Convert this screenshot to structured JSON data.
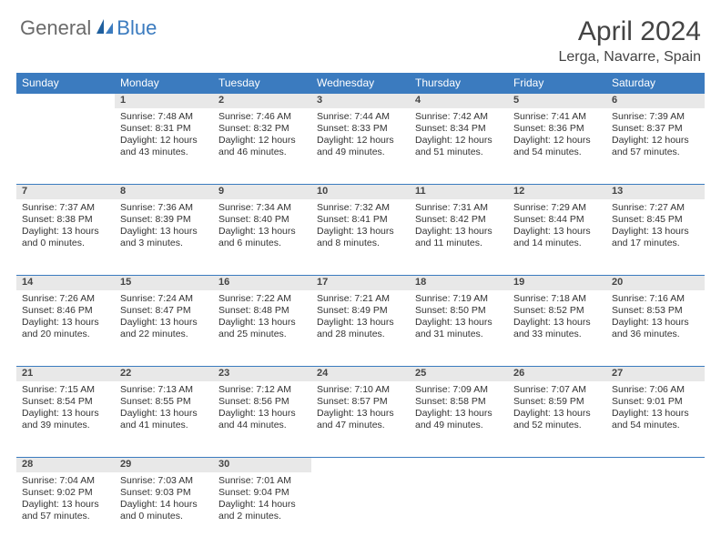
{
  "brand": {
    "part1": "General",
    "part2": "Blue"
  },
  "title": "April 2024",
  "location": "Lerga, Navarre, Spain",
  "colors": {
    "header_bg": "#3b7bbf",
    "header_text": "#ffffff",
    "daynum_bg": "#e8e8e8",
    "logo_gray": "#6a6a6a",
    "logo_blue": "#3b7bbf"
  },
  "typography": {
    "title_fontsize": 30,
    "location_fontsize": 16,
    "dayheader_fontsize": 12,
    "cell_fontsize": 10.5
  },
  "day_headers": [
    "Sunday",
    "Monday",
    "Tuesday",
    "Wednesday",
    "Thursday",
    "Friday",
    "Saturday"
  ],
  "weeks": [
    {
      "nums": [
        "",
        "1",
        "2",
        "3",
        "4",
        "5",
        "6"
      ],
      "cells": [
        {
          "empty": true
        },
        {
          "sunrise": "Sunrise: 7:48 AM",
          "sunset": "Sunset: 8:31 PM",
          "d1": "Daylight: 12 hours",
          "d2": "and 43 minutes."
        },
        {
          "sunrise": "Sunrise: 7:46 AM",
          "sunset": "Sunset: 8:32 PM",
          "d1": "Daylight: 12 hours",
          "d2": "and 46 minutes."
        },
        {
          "sunrise": "Sunrise: 7:44 AM",
          "sunset": "Sunset: 8:33 PM",
          "d1": "Daylight: 12 hours",
          "d2": "and 49 minutes."
        },
        {
          "sunrise": "Sunrise: 7:42 AM",
          "sunset": "Sunset: 8:34 PM",
          "d1": "Daylight: 12 hours",
          "d2": "and 51 minutes."
        },
        {
          "sunrise": "Sunrise: 7:41 AM",
          "sunset": "Sunset: 8:36 PM",
          "d1": "Daylight: 12 hours",
          "d2": "and 54 minutes."
        },
        {
          "sunrise": "Sunrise: 7:39 AM",
          "sunset": "Sunset: 8:37 PM",
          "d1": "Daylight: 12 hours",
          "d2": "and 57 minutes."
        }
      ]
    },
    {
      "nums": [
        "7",
        "8",
        "9",
        "10",
        "11",
        "12",
        "13"
      ],
      "cells": [
        {
          "sunrise": "Sunrise: 7:37 AM",
          "sunset": "Sunset: 8:38 PM",
          "d1": "Daylight: 13 hours",
          "d2": "and 0 minutes."
        },
        {
          "sunrise": "Sunrise: 7:36 AM",
          "sunset": "Sunset: 8:39 PM",
          "d1": "Daylight: 13 hours",
          "d2": "and 3 minutes."
        },
        {
          "sunrise": "Sunrise: 7:34 AM",
          "sunset": "Sunset: 8:40 PM",
          "d1": "Daylight: 13 hours",
          "d2": "and 6 minutes."
        },
        {
          "sunrise": "Sunrise: 7:32 AM",
          "sunset": "Sunset: 8:41 PM",
          "d1": "Daylight: 13 hours",
          "d2": "and 8 minutes."
        },
        {
          "sunrise": "Sunrise: 7:31 AM",
          "sunset": "Sunset: 8:42 PM",
          "d1": "Daylight: 13 hours",
          "d2": "and 11 minutes."
        },
        {
          "sunrise": "Sunrise: 7:29 AM",
          "sunset": "Sunset: 8:44 PM",
          "d1": "Daylight: 13 hours",
          "d2": "and 14 minutes."
        },
        {
          "sunrise": "Sunrise: 7:27 AM",
          "sunset": "Sunset: 8:45 PM",
          "d1": "Daylight: 13 hours",
          "d2": "and 17 minutes."
        }
      ]
    },
    {
      "nums": [
        "14",
        "15",
        "16",
        "17",
        "18",
        "19",
        "20"
      ],
      "cells": [
        {
          "sunrise": "Sunrise: 7:26 AM",
          "sunset": "Sunset: 8:46 PM",
          "d1": "Daylight: 13 hours",
          "d2": "and 20 minutes."
        },
        {
          "sunrise": "Sunrise: 7:24 AM",
          "sunset": "Sunset: 8:47 PM",
          "d1": "Daylight: 13 hours",
          "d2": "and 22 minutes."
        },
        {
          "sunrise": "Sunrise: 7:22 AM",
          "sunset": "Sunset: 8:48 PM",
          "d1": "Daylight: 13 hours",
          "d2": "and 25 minutes."
        },
        {
          "sunrise": "Sunrise: 7:21 AM",
          "sunset": "Sunset: 8:49 PM",
          "d1": "Daylight: 13 hours",
          "d2": "and 28 minutes."
        },
        {
          "sunrise": "Sunrise: 7:19 AM",
          "sunset": "Sunset: 8:50 PM",
          "d1": "Daylight: 13 hours",
          "d2": "and 31 minutes."
        },
        {
          "sunrise": "Sunrise: 7:18 AM",
          "sunset": "Sunset: 8:52 PM",
          "d1": "Daylight: 13 hours",
          "d2": "and 33 minutes."
        },
        {
          "sunrise": "Sunrise: 7:16 AM",
          "sunset": "Sunset: 8:53 PM",
          "d1": "Daylight: 13 hours",
          "d2": "and 36 minutes."
        }
      ]
    },
    {
      "nums": [
        "21",
        "22",
        "23",
        "24",
        "25",
        "26",
        "27"
      ],
      "cells": [
        {
          "sunrise": "Sunrise: 7:15 AM",
          "sunset": "Sunset: 8:54 PM",
          "d1": "Daylight: 13 hours",
          "d2": "and 39 minutes."
        },
        {
          "sunrise": "Sunrise: 7:13 AM",
          "sunset": "Sunset: 8:55 PM",
          "d1": "Daylight: 13 hours",
          "d2": "and 41 minutes."
        },
        {
          "sunrise": "Sunrise: 7:12 AM",
          "sunset": "Sunset: 8:56 PM",
          "d1": "Daylight: 13 hours",
          "d2": "and 44 minutes."
        },
        {
          "sunrise": "Sunrise: 7:10 AM",
          "sunset": "Sunset: 8:57 PM",
          "d1": "Daylight: 13 hours",
          "d2": "and 47 minutes."
        },
        {
          "sunrise": "Sunrise: 7:09 AM",
          "sunset": "Sunset: 8:58 PM",
          "d1": "Daylight: 13 hours",
          "d2": "and 49 minutes."
        },
        {
          "sunrise": "Sunrise: 7:07 AM",
          "sunset": "Sunset: 8:59 PM",
          "d1": "Daylight: 13 hours",
          "d2": "and 52 minutes."
        },
        {
          "sunrise": "Sunrise: 7:06 AM",
          "sunset": "Sunset: 9:01 PM",
          "d1": "Daylight: 13 hours",
          "d2": "and 54 minutes."
        }
      ]
    },
    {
      "nums": [
        "28",
        "29",
        "30",
        "",
        "",
        "",
        ""
      ],
      "cells": [
        {
          "sunrise": "Sunrise: 7:04 AM",
          "sunset": "Sunset: 9:02 PM",
          "d1": "Daylight: 13 hours",
          "d2": "and 57 minutes."
        },
        {
          "sunrise": "Sunrise: 7:03 AM",
          "sunset": "Sunset: 9:03 PM",
          "d1": "Daylight: 14 hours",
          "d2": "and 0 minutes."
        },
        {
          "sunrise": "Sunrise: 7:01 AM",
          "sunset": "Sunset: 9:04 PM",
          "d1": "Daylight: 14 hours",
          "d2": "and 2 minutes."
        },
        {
          "empty": true
        },
        {
          "empty": true
        },
        {
          "empty": true
        },
        {
          "empty": true
        }
      ]
    }
  ]
}
